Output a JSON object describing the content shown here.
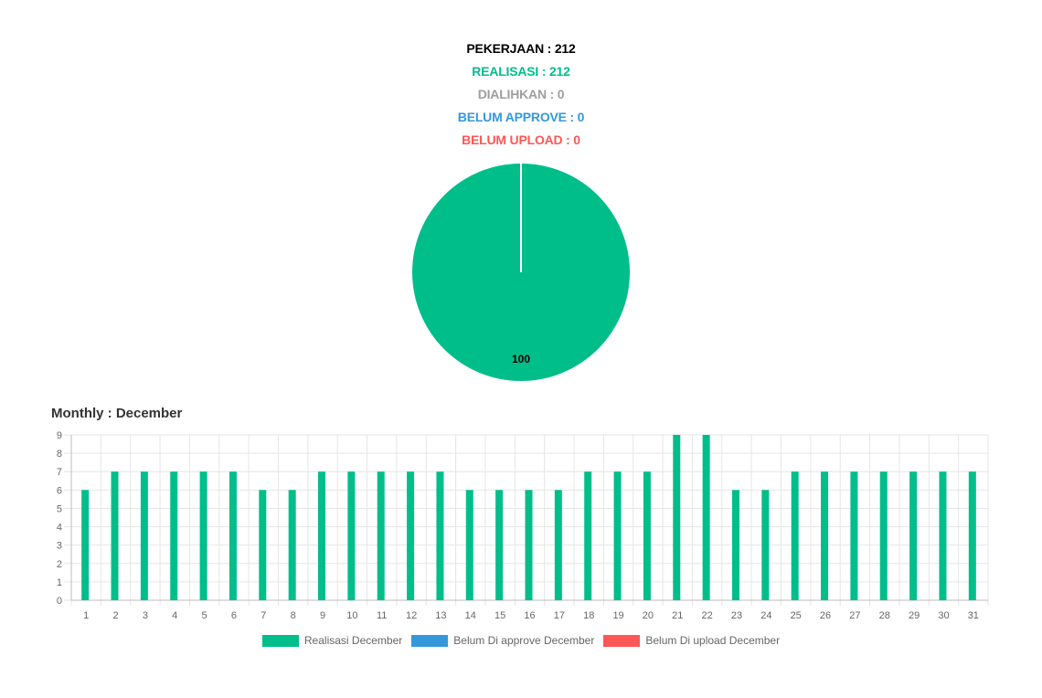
{
  "summary": {
    "pekerjaan": "PEKERJAAN : 212",
    "realisasi": "REALISASI : 212",
    "dialihkan": "DIALIHKAN : 0",
    "belum_approve": "BELUM APPROVE : 0",
    "belum_upload": "BELUM UPLOAD : 0"
  },
  "colors": {
    "pekerjaan": "#000000",
    "realisasi": "#00be8a",
    "dialihkan": "#9e9e9e",
    "belum_approve": "#3498db",
    "belum_upload": "#ff5656"
  },
  "chart_data": [
    {
      "type": "pie",
      "slices": [
        {
          "value": 100,
          "label": "100",
          "color": "#00be8a"
        }
      ]
    },
    {
      "type": "bar",
      "title": "Monthly : December",
      "categories": [
        "1",
        "2",
        "3",
        "4",
        "5",
        "6",
        "7",
        "8",
        "9",
        "10",
        "11",
        "12",
        "13",
        "14",
        "15",
        "16",
        "17",
        "18",
        "19",
        "20",
        "21",
        "22",
        "23",
        "24",
        "25",
        "26",
        "27",
        "28",
        "29",
        "30",
        "31"
      ],
      "series": [
        {
          "name": "Realisasi December",
          "color": "#00be8a",
          "values": [
            6,
            7,
            7,
            7,
            7,
            7,
            6,
            6,
            7,
            7,
            7,
            7,
            7,
            6,
            6,
            6,
            6,
            7,
            7,
            7,
            9,
            9,
            6,
            6,
            7,
            7,
            7,
            7,
            7,
            7,
            7
          ]
        },
        {
          "name": "Belum Di approve December",
          "color": "#3498db",
          "values": [
            0,
            0,
            0,
            0,
            0,
            0,
            0,
            0,
            0,
            0,
            0,
            0,
            0,
            0,
            0,
            0,
            0,
            0,
            0,
            0,
            0,
            0,
            0,
            0,
            0,
            0,
            0,
            0,
            0,
            0,
            0
          ]
        },
        {
          "name": "Belum Di upload December",
          "color": "#ff5656",
          "values": [
            0,
            0,
            0,
            0,
            0,
            0,
            0,
            0,
            0,
            0,
            0,
            0,
            0,
            0,
            0,
            0,
            0,
            0,
            0,
            0,
            0,
            0,
            0,
            0,
            0,
            0,
            0,
            0,
            0,
            0,
            0
          ]
        }
      ],
      "ylim": [
        0,
        9
      ],
      "yticks": [
        0,
        1,
        2,
        3,
        4,
        5,
        6,
        7,
        8,
        9
      ],
      "grid": true,
      "legend": "bottom"
    }
  ]
}
